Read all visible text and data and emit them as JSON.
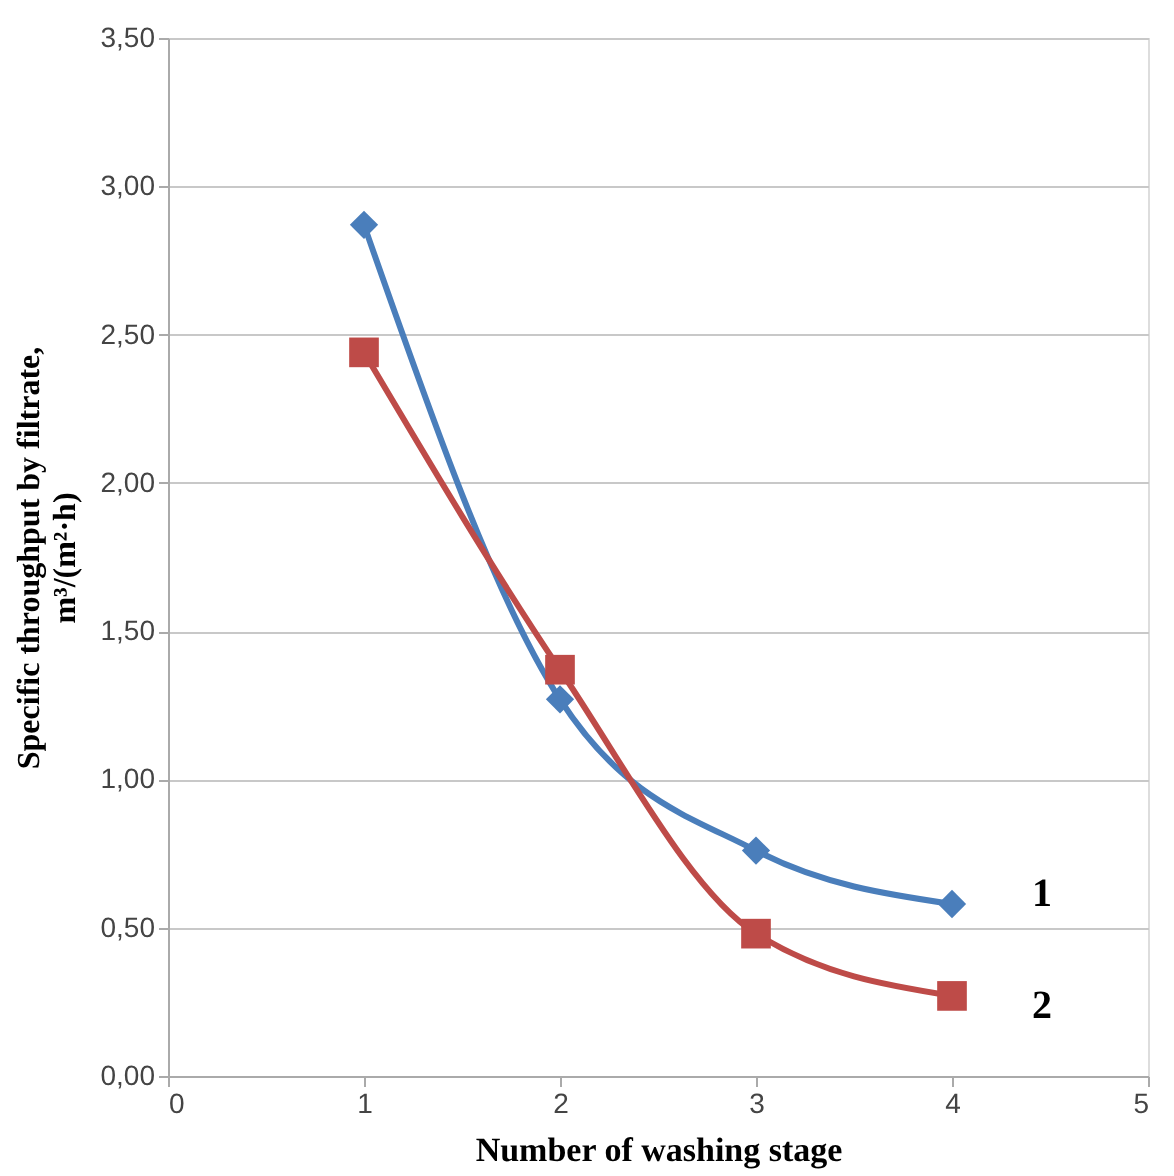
{
  "chart_data": {
    "type": "line",
    "xlabel": "Number of washing stage",
    "ylabel": "Specific throughput by filtrate,\nm³/(m²·h)",
    "x": [
      1,
      2,
      3,
      4
    ],
    "series": [
      {
        "name": "1",
        "color": "#4a7ebb",
        "marker": "diamond",
        "values": [
          2.87,
          1.27,
          0.76,
          0.58
        ]
      },
      {
        "name": "2",
        "color": "#be4b48",
        "marker": "square",
        "values": [
          2.44,
          1.37,
          0.48,
          0.27
        ]
      }
    ],
    "xlim": [
      0,
      5
    ],
    "xticks": [
      0,
      1,
      2,
      3,
      4,
      5
    ],
    "ylim": [
      0,
      3.5
    ],
    "yticks": [
      {
        "value": 0,
        "label": "0,00"
      },
      {
        "value": 0.5,
        "label": "0,50"
      },
      {
        "value": 1,
        "label": "1,00"
      },
      {
        "value": 1.5,
        "label": "1,50"
      },
      {
        "value": 2,
        "label": "2,00"
      },
      {
        "value": 2.5,
        "label": "2,50"
      },
      {
        "value": 3,
        "label": "3,00"
      },
      {
        "value": 3.5,
        "label": "3,50"
      }
    ],
    "grid": "y"
  }
}
